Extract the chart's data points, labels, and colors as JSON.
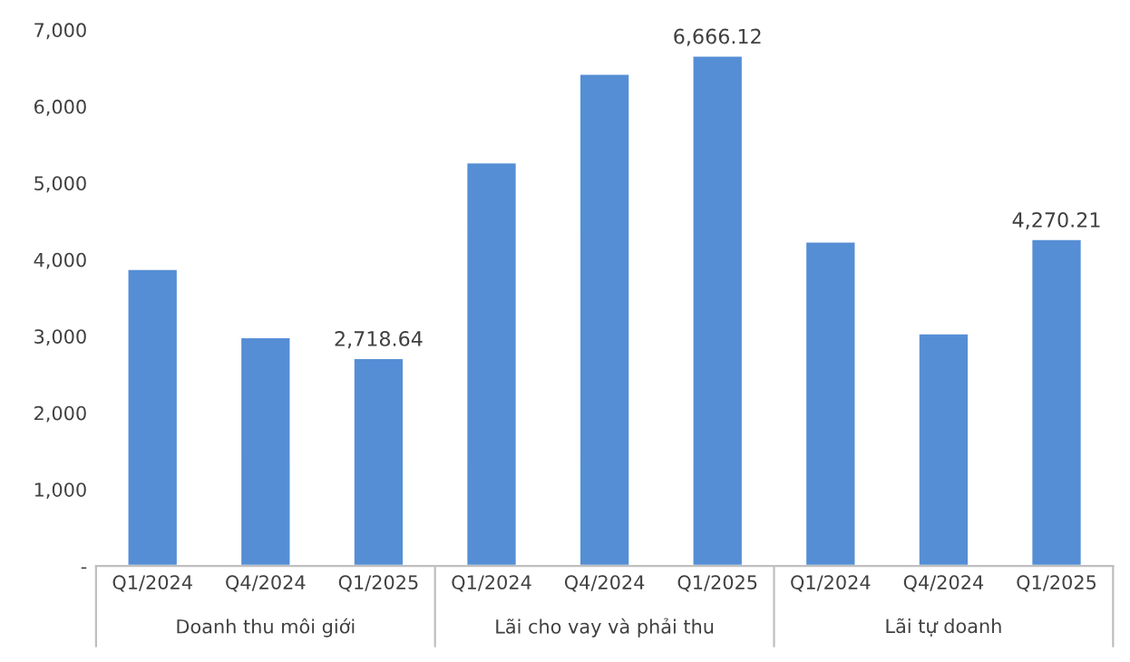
{
  "chart_data": {
    "type": "bar",
    "categories": [
      "Q1/2024",
      "Q4/2024",
      "Q1/2025",
      "Q1/2024",
      "Q4/2024",
      "Q1/2025",
      "Q1/2024",
      "Q4/2024",
      "Q1/2025"
    ],
    "values": [
      3880,
      2990,
      2718.64,
      5270,
      6430,
      6666.12,
      4240,
      3040,
      4270.21
    ],
    "value_labels": [
      null,
      null,
      "2,718.64",
      null,
      null,
      "6,666.12",
      null,
      null,
      "4,270.21"
    ],
    "color": "#558ed5",
    "annotations": [
      "Doanh thu môi giới",
      "Lãi cho vay và phải thu",
      "Lãi tự doanh"
    ],
    "ylim": [
      0,
      7000
    ],
    "yticks": [
      {
        "value": 0,
        "label": "-"
      },
      {
        "value": 1000,
        "label": "1,000"
      },
      {
        "value": 2000,
        "label": "2,000"
      },
      {
        "value": 3000,
        "label": "3,000"
      },
      {
        "value": 4000,
        "label": "4,000"
      },
      {
        "value": 5000,
        "label": "5,000"
      },
      {
        "value": 6000,
        "label": "6,000"
      },
      {
        "value": 7000,
        "label": "7,000"
      }
    ],
    "grid": false,
    "legend": false
  }
}
